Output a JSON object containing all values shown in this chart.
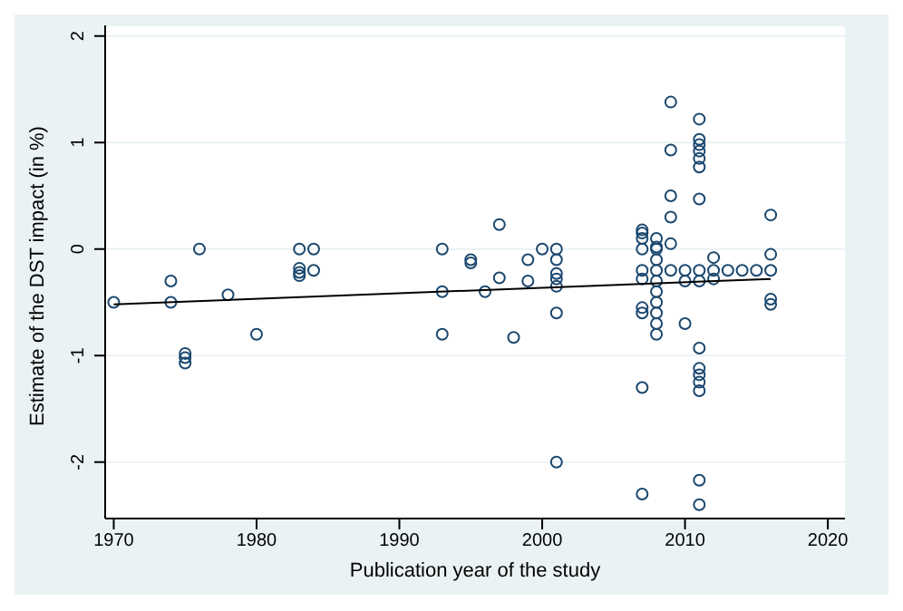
{
  "chart_data": {
    "type": "scatter",
    "xlabel": "Publication year of the study",
    "ylabel": "Estimate of the DST impact (in %)",
    "xlim": [
      1969.4,
      2021.2
    ],
    "xticks": [
      1970,
      1980,
      1990,
      2000,
      2010,
      2020
    ],
    "ylim": [
      -2.53,
      2.1
    ],
    "yticks": [
      -2,
      -1,
      0,
      1,
      2
    ],
    "grid": "y",
    "legend": false,
    "marker": "circle",
    "series": [
      {
        "color": "#1a476f",
        "x": [
          1970,
          1974,
          1974,
          1975,
          1975,
          1975,
          1976,
          1978,
          1980,
          1983,
          1983,
          1983,
          1983,
          1984,
          1984,
          1993,
          1993,
          1993,
          1995,
          1995,
          1996,
          1997,
          1997,
          1998,
          1999,
          1999,
          2000,
          2001,
          2001,
          2001,
          2001,
          2001,
          2001,
          2001,
          2007,
          2007,
          2007,
          2007,
          2007,
          2007,
          2007,
          2007,
          2007,
          2007,
          2008,
          2008,
          2008,
          2008,
          2008,
          2008,
          2008,
          2008,
          2008,
          2008,
          2008,
          2009,
          2009,
          2009,
          2009,
          2009,
          2009,
          2010,
          2010,
          2010,
          2011,
          2011,
          2011,
          2011,
          2011,
          2011,
          2011,
          2011,
          2011,
          2011,
          2011,
          2011,
          2011,
          2011,
          2011,
          2011,
          2012,
          2012,
          2012,
          2013,
          2014,
          2015,
          2016,
          2016,
          2016,
          2016,
          2016
        ],
        "values": [
          -0.5,
          -0.3,
          -0.5,
          -0.98,
          -1.02,
          -1.07,
          0,
          -0.43,
          -0.8,
          0,
          -0.18,
          -0.22,
          -0.25,
          0,
          -0.2,
          0,
          -0.4,
          -0.8,
          -0.1,
          -0.13,
          -0.4,
          0.23,
          -0.27,
          -0.83,
          -0.1,
          -0.3,
          0,
          0,
          -0.1,
          -0.23,
          -0.28,
          -0.35,
          -0.6,
          -2.0,
          0.18,
          0.15,
          0.1,
          0,
          -0.2,
          -0.28,
          -0.55,
          -0.6,
          -1.3,
          -2.3,
          0.1,
          0,
          -0.1,
          -0.2,
          -0.3,
          -0.4,
          -0.5,
          -0.6,
          -0.7,
          -0.8,
          0.02,
          1.38,
          0.93,
          0.5,
          0.3,
          0.05,
          -0.2,
          -0.2,
          -0.3,
          -0.7,
          1.22,
          1.03,
          0.98,
          0.92,
          0.85,
          0.77,
          0.47,
          -0.2,
          -0.3,
          -0.93,
          -1.12,
          -1.18,
          -1.25,
          -1.33,
          -2.17,
          -2.4,
          -0.08,
          -0.2,
          -0.28,
          -0.2,
          -0.2,
          -0.2,
          0.32,
          -0.05,
          -0.2,
          -0.47,
          -0.52
        ]
      },
      {
        "type": "line",
        "color": "#000000",
        "marker": "none",
        "x": [
          1970,
          2016
        ],
        "values": [
          -0.52,
          -0.28
        ]
      }
    ]
  }
}
